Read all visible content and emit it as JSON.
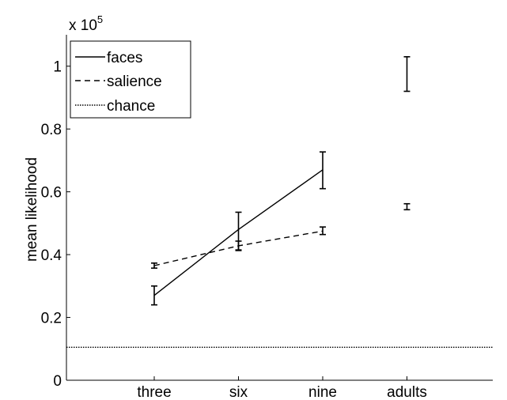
{
  "chart_data": {
    "type": "line",
    "ylabel": "mean likelihood",
    "xlabel": "",
    "y_exponent_label": "x 10",
    "y_exponent_power": "5",
    "categories": [
      "three",
      "six",
      "nine",
      "adults"
    ],
    "ylim": [
      0,
      1.1
    ],
    "y_ticks": [
      0,
      0.2,
      0.4,
      0.6,
      0.8,
      1
    ],
    "y_tick_labels": [
      "0",
      "0.2",
      "0.4",
      "0.6",
      "0.8",
      "1"
    ],
    "grid": false,
    "legend_position": "top-left",
    "legend": [
      {
        "key": "faces",
        "label": "faces",
        "style": "solid"
      },
      {
        "key": "salience",
        "label": "salience",
        "style": "dashed"
      },
      {
        "key": "chance",
        "label": "chance",
        "style": "dotted"
      }
    ],
    "series": [
      {
        "key": "faces",
        "style": "solid",
        "points": [
          {
            "category": "three",
            "y": 0.27,
            "low": 0.24,
            "high": 0.3,
            "connected": true
          },
          {
            "category": "six",
            "y": 0.48,
            "low": 0.415,
            "high": 0.535,
            "connected": true
          },
          {
            "category": "nine",
            "y": 0.67,
            "low": 0.61,
            "high": 0.727,
            "connected": true
          },
          {
            "category": "adults",
            "y": 0.975,
            "low": 0.92,
            "high": 1.03,
            "connected": false
          }
        ]
      },
      {
        "key": "salience",
        "style": "dashed",
        "points": [
          {
            "category": "three",
            "y": 0.365,
            "low": 0.357,
            "high": 0.373,
            "connected": true
          },
          {
            "category": "six",
            "y": 0.428,
            "low": 0.413,
            "high": 0.443,
            "connected": true
          },
          {
            "category": "nine",
            "y": 0.475,
            "low": 0.464,
            "high": 0.488,
            "connected": true
          },
          {
            "category": "adults",
            "y": 0.552,
            "low": 0.543,
            "high": 0.562,
            "connected": false
          }
        ]
      }
    ],
    "chance_level": 0.105
  }
}
